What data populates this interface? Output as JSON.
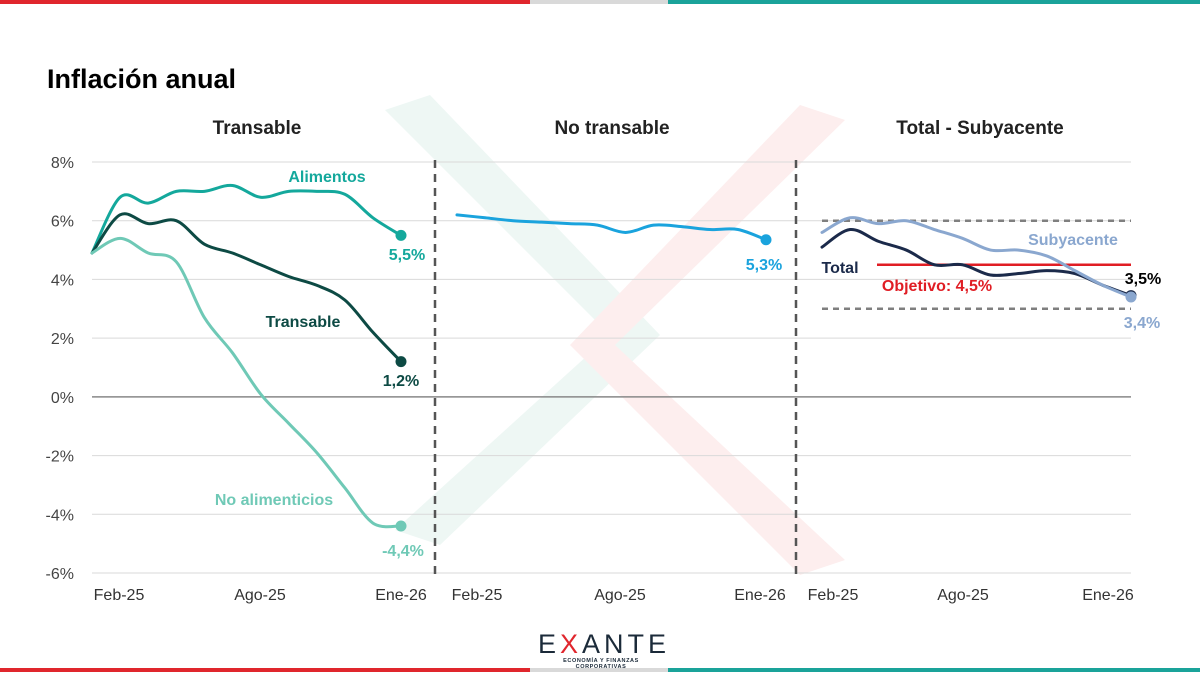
{
  "title": "Inflación anual",
  "colors": {
    "brand_red": "#e0262d",
    "brand_teal": "#1aa39a",
    "brand_gray": "#d9d9d9",
    "alimentos": "#14a89c",
    "transable": "#0d4a44",
    "no_alimenticios": "#6fc9b6",
    "no_transable": "#1aa3dd",
    "total": "#1b2a4a",
    "subyacente": "#8aa7cf",
    "objetivo": "#e01d24",
    "band": "#7f7f7f"
  },
  "logo": {
    "word_left": "E",
    "word_x": "X",
    "word_right": "ANTE",
    "subtitle": "ECONOMÍA Y FINANZAS CORPORATIVAS"
  },
  "chart_data": {
    "type": "line",
    "y_axis": {
      "ylim": [
        -6,
        8
      ],
      "ticks": [
        "8%",
        "6%",
        "4%",
        "2%",
        "0%",
        "-2%",
        "-4%",
        "-6%"
      ],
      "tick_values": [
        8,
        6,
        4,
        2,
        0,
        -2,
        -4,
        -6
      ]
    },
    "x_ticks": [
      "Feb-25",
      "Ago-25",
      "Ene-26"
    ],
    "panels": [
      {
        "title": "Transable",
        "series": [
          {
            "name": "Alimentos",
            "label": "Alimentos",
            "color_key": "alimentos",
            "end_label": "5,5%",
            "values": [
              4.9,
              6.8,
              6.6,
              7.0,
              7.0,
              7.2,
              6.8,
              7.0,
              7.0,
              6.9,
              6.1,
              5.5
            ]
          },
          {
            "name": "Transable",
            "label": "Transable",
            "color_key": "transable",
            "end_label": "1,2%",
            "values": [
              4.9,
              6.2,
              5.9,
              6.0,
              5.2,
              4.9,
              4.5,
              4.1,
              3.8,
              3.3,
              2.2,
              1.2
            ]
          },
          {
            "name": "No alimenticios",
            "label": "No alimenticios",
            "color_key": "no_alimenticios",
            "end_label": "-4,4%",
            "values": [
              4.9,
              5.4,
              4.9,
              4.6,
              2.7,
              1.5,
              0.1,
              -0.9,
              -1.9,
              -3.1,
              -4.3,
              -4.4
            ]
          }
        ]
      },
      {
        "title": "No transable",
        "series": [
          {
            "name": "No transable",
            "label": "",
            "color_key": "no_transable",
            "end_label": "5,3%",
            "values": [
              6.2,
              6.1,
              6.0,
              5.95,
              5.9,
              5.85,
              5.6,
              5.85,
              5.8,
              5.7,
              5.7,
              5.35
            ]
          }
        ]
      },
      {
        "title": "Total - Subyacente",
        "series": [
          {
            "name": "Total",
            "label": "Total",
            "color_key": "total",
            "end_label": "3,5%",
            "values": [
              5.1,
              5.7,
              5.3,
              5.0,
              4.5,
              4.5,
              4.15,
              4.2,
              4.3,
              4.2,
              3.8,
              3.45
            ]
          },
          {
            "name": "Subyacente",
            "label": "Subyacente",
            "color_key": "subyacente",
            "end_label": "3,4%",
            "values": [
              5.6,
              6.1,
              5.9,
              6.0,
              5.7,
              5.4,
              5.0,
              5.0,
              4.8,
              4.3,
              3.8,
              3.4
            ]
          }
        ],
        "target": {
          "label": "Objetivo: 4,5%",
          "value": 4.5
        },
        "band": {
          "upper": 6.0,
          "lower": 3.0
        }
      }
    ]
  }
}
